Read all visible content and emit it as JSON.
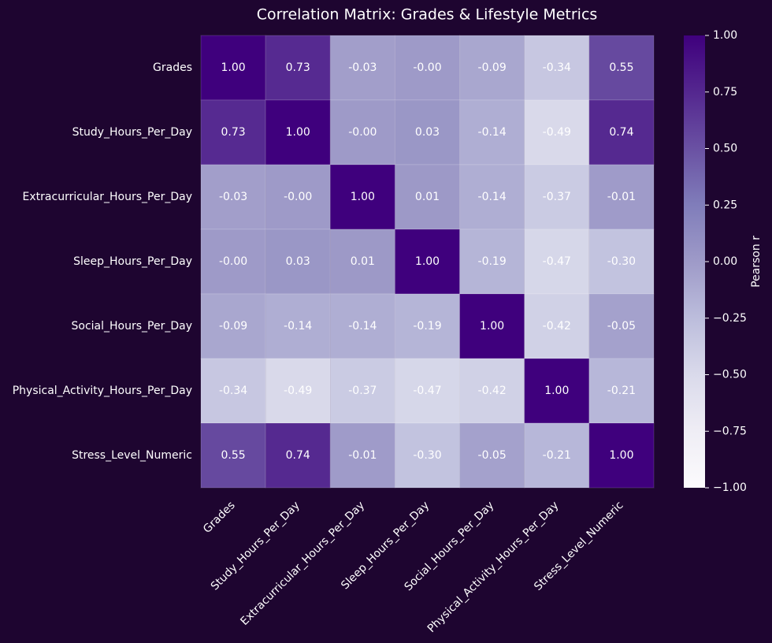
{
  "chart_data": {
    "type": "heatmap",
    "title": "Correlation Matrix: Grades & Lifestyle Metrics",
    "categories": [
      "Grades",
      "Study_Hours_Per_Day",
      "Extracurricular_Hours_Per_Day",
      "Sleep_Hours_Per_Day",
      "Social_Hours_Per_Day",
      "Physical_Activity_Hours_Per_Day",
      "Stress_Level_Numeric"
    ],
    "values": [
      [
        1,
        0.73,
        -0.03,
        0,
        -0.09,
        -0.34,
        0.55
      ],
      [
        0.73,
        1,
        0,
        0.03,
        -0.14,
        -0.49,
        0.74
      ],
      [
        -0.03,
        0,
        1,
        0.01,
        -0.14,
        -0.37,
        -0.01
      ],
      [
        0,
        0.03,
        0.01,
        1,
        -0.19,
        -0.47,
        -0.3
      ],
      [
        -0.09,
        -0.14,
        -0.14,
        -0.19,
        1,
        -0.42,
        -0.05
      ],
      [
        -0.34,
        -0.49,
        -0.37,
        -0.47,
        -0.42,
        1,
        -0.21
      ],
      [
        0.55,
        0.74,
        -0.01,
        -0.3,
        -0.05,
        -0.21,
        1
      ]
    ],
    "value_labels": [
      [
        "1.00",
        "0.73",
        "-0.03",
        "-0.00",
        "-0.09",
        "-0.34",
        "0.55"
      ],
      [
        "0.73",
        "1.00",
        "-0.00",
        "0.03",
        "-0.14",
        "-0.49",
        "0.74"
      ],
      [
        "-0.03",
        "-0.00",
        "1.00",
        "0.01",
        "-0.14",
        "-0.37",
        "-0.01"
      ],
      [
        "-0.00",
        "0.03",
        "0.01",
        "1.00",
        "-0.19",
        "-0.47",
        "-0.30"
      ],
      [
        "-0.09",
        "-0.14",
        "-0.14",
        "-0.19",
        "1.00",
        "-0.42",
        "-0.05"
      ],
      [
        "-0.34",
        "-0.49",
        "-0.37",
        "-0.47",
        "-0.42",
        "1.00",
        "-0.21"
      ],
      [
        "0.55",
        "0.74",
        "-0.01",
        "-0.30",
        "-0.05",
        "-0.21",
        "1.00"
      ]
    ],
    "colormap": [
      "#fcfbfd",
      "#efedf5",
      "#dadaeb",
      "#bcbddc",
      "#9e9ac8",
      "#807dba",
      "#6a51a3",
      "#54278f",
      "#3f007d"
    ],
    "colorbar_label": "Pearson r",
    "zlim": [
      -1,
      1
    ],
    "zticks": [
      {
        "value": 1,
        "label": "1.00"
      },
      {
        "value": 0.75,
        "label": "0.75"
      },
      {
        "value": 0.5,
        "label": "0.50"
      },
      {
        "value": 0.25,
        "label": "0.25"
      },
      {
        "value": 0,
        "label": "0.00"
      },
      {
        "value": -0.25,
        "label": "−0.25"
      },
      {
        "value": -0.5,
        "label": "−0.50"
      },
      {
        "value": -0.75,
        "label": "−0.75"
      },
      {
        "value": -1,
        "label": "−1.00"
      }
    ]
  }
}
